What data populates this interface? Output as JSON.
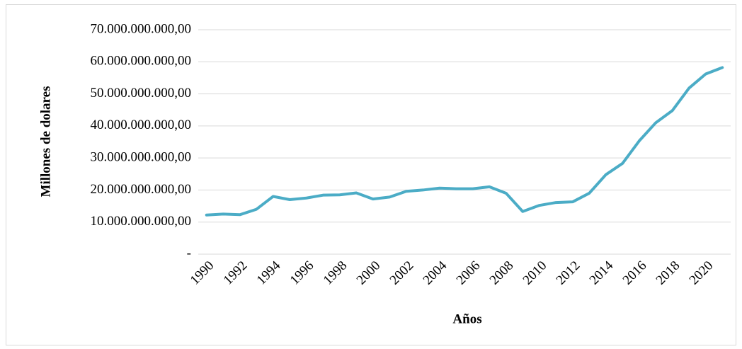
{
  "chart_data": {
    "type": "line",
    "x_label": "Años",
    "y_label": "Millones de dolares",
    "categories": [
      "1990",
      null,
      "1992",
      null,
      "1994",
      null,
      "1996",
      null,
      "1998",
      null,
      "2000",
      null,
      "2002",
      null,
      "2004",
      null,
      "2006",
      null,
      "2008",
      null,
      "2010",
      null,
      "2012",
      null,
      "2014",
      null,
      "2016",
      null,
      "2018",
      null,
      "2020",
      null
    ],
    "series": [
      {
        "name": "Millones de dolares",
        "color": "#4bacc6",
        "values": [
          12200000000,
          12500000000,
          12300000000,
          14000000000,
          18000000000,
          17000000000,
          17500000000,
          18400000000,
          18500000000,
          19100000000,
          17200000000,
          17800000000,
          19600000000,
          20000000000,
          20600000000,
          20400000000,
          20400000000,
          21000000000,
          19000000000,
          13300000000,
          15200000000,
          16100000000,
          16300000000,
          19000000000,
          24800000000,
          28300000000,
          35300000000,
          41000000000,
          44800000000,
          51800000000,
          56200000000,
          58200000000
        ]
      }
    ],
    "ylim": [
      0,
      70000000000
    ],
    "yticks": [
      {
        "value": 0,
        "label": "-"
      },
      {
        "value": 10000000000,
        "label": "10.000.000.000,00"
      },
      {
        "value": 20000000000,
        "label": "20.000.000.000,00"
      },
      {
        "value": 30000000000,
        "label": "30.000.000.000,00"
      },
      {
        "value": 40000000000,
        "label": "40.000.000.000,00"
      },
      {
        "value": 50000000000,
        "label": "50.000.000.000,00"
      },
      {
        "value": 60000000000,
        "label": "60.000.000.000,00"
      },
      {
        "value": 70000000000,
        "label": "70.000.000.000,00"
      }
    ],
    "grid": true
  }
}
